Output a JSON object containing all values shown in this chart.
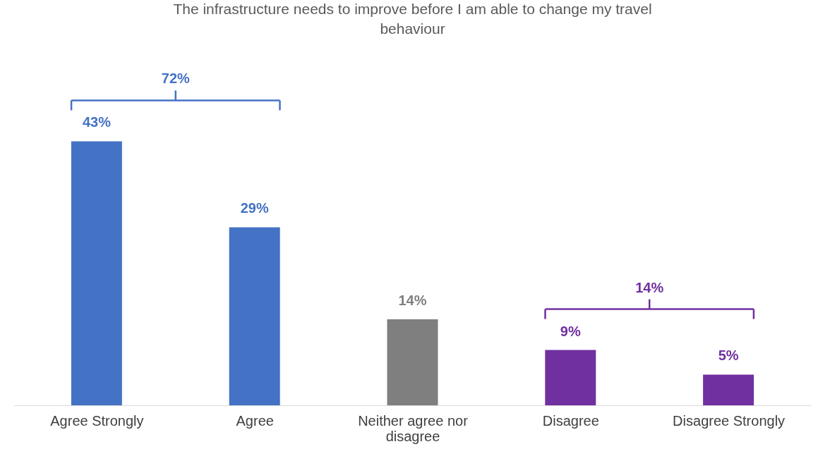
{
  "chart_data": {
    "type": "bar",
    "title": "The infrastructure needs to improve before I am able to change my travel behaviour",
    "categories": [
      "Agree Strongly",
      "Agree",
      "Neither agree nor disagree",
      "Disagree",
      "Disagree Strongly"
    ],
    "values": [
      43,
      29,
      14,
      9,
      5
    ],
    "colors": [
      "#4472c4",
      "#4472c4",
      "#7f7f7f",
      "#7030a0",
      "#7030a0"
    ],
    "value_labels": [
      "43%",
      "29%",
      "14%",
      "9%",
      "5%"
    ],
    "annotations": [
      "72%",
      "14%"
    ]
  }
}
